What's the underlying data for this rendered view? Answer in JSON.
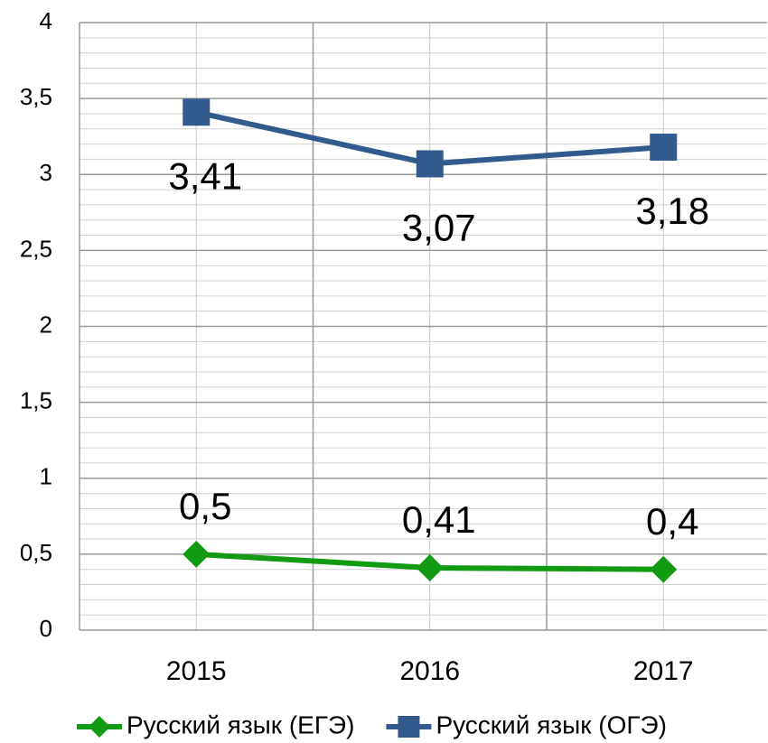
{
  "chart_data": {
    "type": "line",
    "categories": [
      "2015",
      "2016",
      "2017"
    ],
    "series": [
      {
        "name": "Русский язык (ЕГЭ)",
        "color": "#139a13",
        "marker": "diamond",
        "values": [
          0.5,
          0.41,
          0.4
        ],
        "value_labels": [
          "0,5",
          "0,41",
          "0,4"
        ]
      },
      {
        "name": "Русский язык (ОГЭ)",
        "color": "#325a8c",
        "marker": "square",
        "values": [
          3.41,
          3.07,
          3.18
        ],
        "value_labels": [
          "3,41",
          "3,07",
          "3,18"
        ]
      }
    ],
    "ylim": [
      0,
      4
    ],
    "yticks": [
      0,
      {
        "value": 0.5,
        "label": "0,5"
      },
      1,
      {
        "value": 1.5,
        "label": "1,5"
      },
      2,
      {
        "value": 2.5,
        "label": "2,5"
      },
      3,
      {
        "value": 3.5,
        "label": "3,5"
      },
      4
    ],
    "minor_yticks": [
      0.1,
      0.2,
      0.3,
      0.4,
      0.6,
      0.7,
      0.8,
      0.9,
      1.1,
      1.2,
      1.3,
      1.4,
      1.6,
      1.7,
      1.8,
      1.9,
      2.1,
      2.2,
      2.3,
      2.4,
      2.6,
      2.7,
      2.8,
      2.9,
      3.1,
      3.2,
      3.3,
      3.4,
      3.6,
      3.7,
      3.8,
      3.9
    ],
    "grid": true,
    "legend": "bottom"
  }
}
